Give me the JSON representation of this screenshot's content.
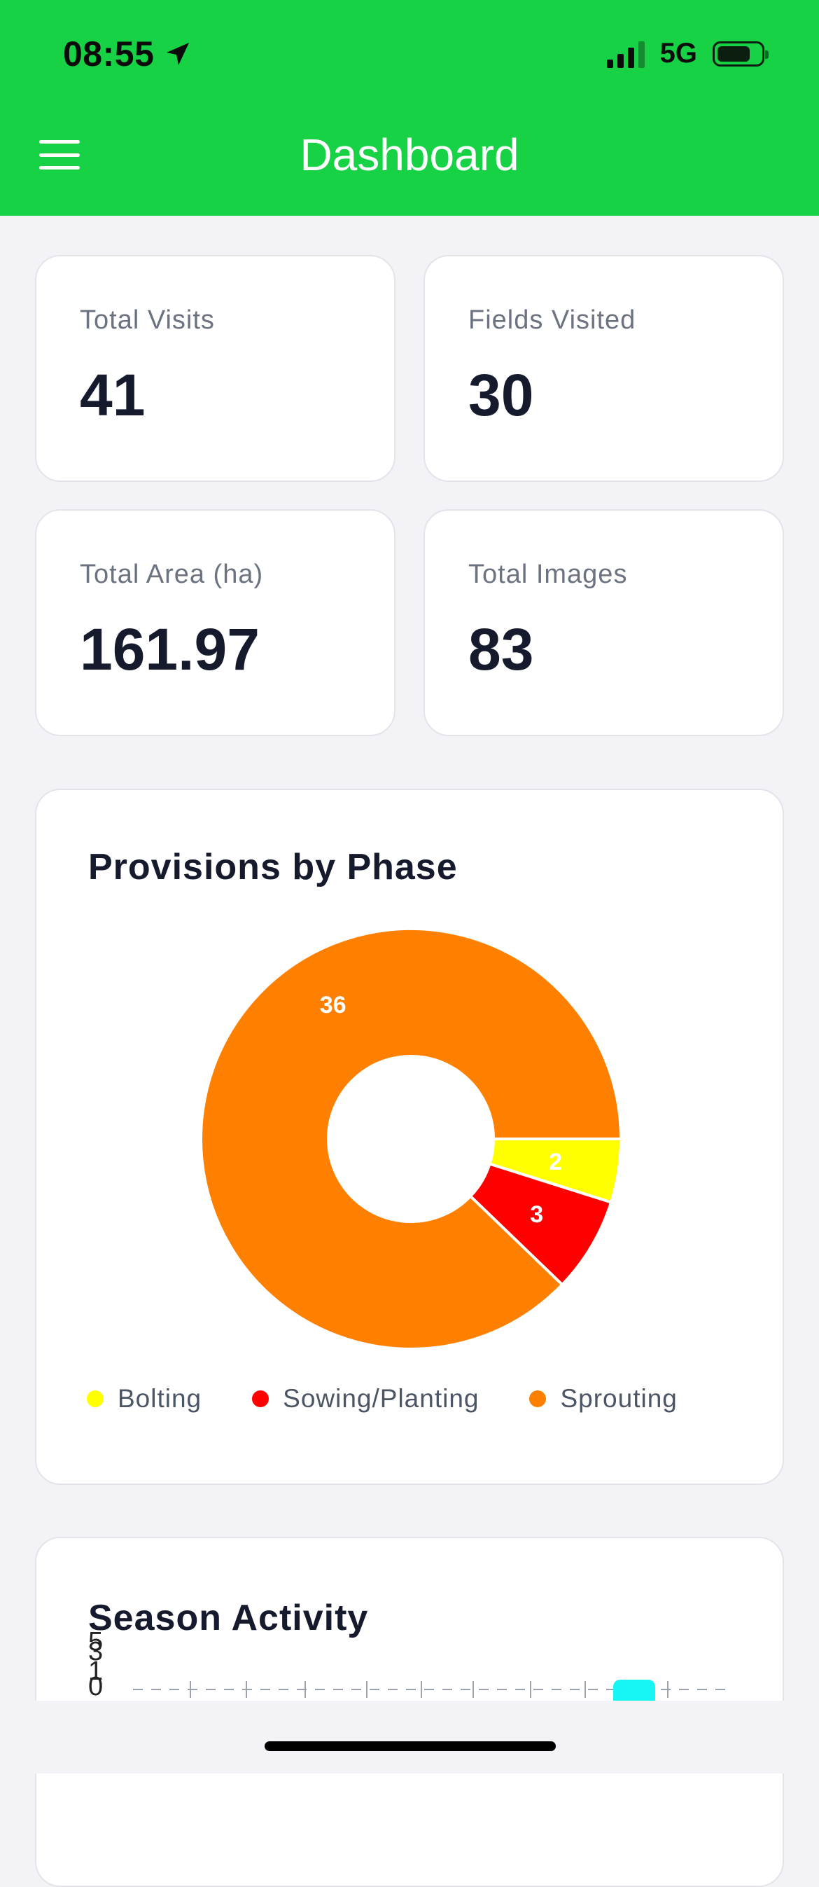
{
  "status_bar": {
    "time": "08:55",
    "network": "5G",
    "icons": [
      "location-arrow-icon",
      "signal-icon",
      "battery-icon"
    ]
  },
  "header": {
    "title": "Dashboard",
    "menu_icon": "hamburger-menu-icon",
    "color": "#17d245"
  },
  "stats": [
    {
      "label": "Total Visits",
      "value": "41"
    },
    {
      "label": "Fields Visited",
      "value": "30"
    },
    {
      "label": "Total Area (ha)",
      "value": "161.97"
    },
    {
      "label": "Total Images",
      "value": "83"
    }
  ],
  "provisions": {
    "title": "Provisions by Phase"
  },
  "season": {
    "title": "Season Activity"
  },
  "chart_data": [
    {
      "type": "pie",
      "title": "Provisions by Phase",
      "categories": [
        "Bolting",
        "Sowing/Planting",
        "Sprouting"
      ],
      "values": [
        2,
        3,
        36
      ],
      "colors": [
        "#ffff00",
        "#ff0000",
        "#ff8000"
      ],
      "donut": true,
      "legend": "bottom"
    },
    {
      "type": "bar",
      "title": "Season Activity",
      "y_ticks": [
        "5",
        "3",
        "1",
        "0"
      ],
      "bar_color": "#17f5f5",
      "grid": true
    }
  ]
}
